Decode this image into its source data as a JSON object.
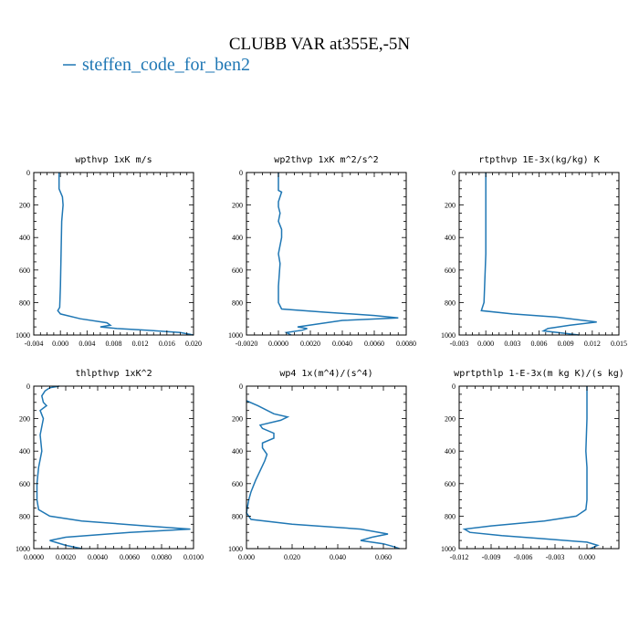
{
  "title": "CLUBB VAR at355E,-5N",
  "legend": {
    "label": "steffen_code_for_ben2",
    "color": "#1f77b4"
  },
  "chart_data": [
    {
      "type": "line",
      "title": "wpthvp  1xK m/s",
      "xlim": [
        -0.004,
        0.02
      ],
      "ylim": [
        1000,
        0
      ],
      "xticks": [
        "-0.004",
        "0.000",
        "0.004",
        "0.008",
        "0.012",
        "0.016",
        "0.020"
      ],
      "yticks": [
        "0",
        "200",
        "400",
        "600",
        "800",
        "1000"
      ],
      "series": [
        {
          "name": "steffen_code_for_ben2",
          "points": [
            [
              -0.0002,
              0
            ],
            [
              -0.0002,
              100
            ],
            [
              0.0003,
              150
            ],
            [
              0.0004,
              200
            ],
            [
              0.0002,
              300
            ],
            [
              0.0001,
              500
            ],
            [
              0.0,
              700
            ],
            [
              -0.0001,
              830
            ],
            [
              -0.0004,
              850
            ],
            [
              0.0,
              870
            ],
            [
              0.003,
              900
            ],
            [
              0.007,
              925
            ],
            [
              0.0075,
              940
            ],
            [
              0.006,
              950
            ],
            [
              0.0085,
              960
            ],
            [
              0.013,
              970
            ],
            [
              0.018,
              985
            ],
            [
              0.02,
              1000
            ]
          ]
        }
      ]
    },
    {
      "type": "line",
      "title": "wp2thvp  1xK m^2/s^2",
      "xlim": [
        -0.002,
        0.008
      ],
      "ylim": [
        1000,
        0
      ],
      "xticks": [
        "-0.0020",
        "0.0000",
        "0.0020",
        "0.0040",
        "0.0060",
        "0.0080"
      ],
      "yticks": [
        "0",
        "200",
        "400",
        "600",
        "800",
        "1000"
      ],
      "series": [
        {
          "name": "steffen_code_for_ben2",
          "points": [
            [
              0.0,
              0
            ],
            [
              0.0,
              110
            ],
            [
              0.0002,
              120
            ],
            [
              0.0,
              180
            ],
            [
              0.0,
              210
            ],
            [
              0.0001,
              250
            ],
            [
              0.0,
              300
            ],
            [
              0.0002,
              350
            ],
            [
              0.0002,
              400
            ],
            [
              0.0,
              500
            ],
            [
              0.0001,
              560
            ],
            [
              0.0,
              700
            ],
            [
              0.0,
              800
            ],
            [
              0.0002,
              840
            ],
            [
              0.003,
              860
            ],
            [
              0.006,
              880
            ],
            [
              0.0075,
              895
            ],
            [
              0.004,
              910
            ],
            [
              0.0012,
              950
            ],
            [
              0.0018,
              960
            ],
            [
              0.0015,
              970
            ],
            [
              0.0005,
              985
            ],
            [
              0.0008,
              1000
            ]
          ]
        }
      ]
    },
    {
      "type": "line",
      "title": "rtpthvp  1E-3x(kg/kg) K",
      "xlim": [
        -0.003,
        0.015
      ],
      "ylim": [
        1000,
        0
      ],
      "xticks": [
        "-0.003",
        "0.000",
        "0.003",
        "0.006",
        "0.009",
        "0.012",
        "0.015"
      ],
      "yticks": [
        "0",
        "200",
        "400",
        "600",
        "800",
        "1000"
      ],
      "series": [
        {
          "name": "steffen_code_for_ben2",
          "points": [
            [
              0.0,
              0
            ],
            [
              0.0,
              200
            ],
            [
              0.0,
              500
            ],
            [
              -0.0002,
              800
            ],
            [
              -0.0005,
              850
            ],
            [
              0.003,
              870
            ],
            [
              0.008,
              890
            ],
            [
              0.0125,
              920
            ],
            [
              0.0095,
              940
            ],
            [
              0.007,
              960
            ],
            [
              0.0065,
              975
            ],
            [
              0.009,
              990
            ],
            [
              0.0105,
              1000
            ]
          ]
        }
      ]
    },
    {
      "type": "line",
      "title": "thlpthvp  1xK^2",
      "xlim": [
        0.0,
        0.01
      ],
      "ylim": [
        1000,
        0
      ],
      "xticks": [
        "0.0000",
        "0.0020",
        "0.0040",
        "0.0060",
        "0.0080",
        "0.0100"
      ],
      "yticks": [
        "0",
        "200",
        "400",
        "600",
        "800",
        "1000"
      ],
      "series": [
        {
          "name": "steffen_code_for_ben2",
          "points": [
            [
              0.0016,
              0
            ],
            [
              0.001,
              10
            ],
            [
              0.0007,
              30
            ],
            [
              0.0005,
              60
            ],
            [
              0.0006,
              100
            ],
            [
              0.0008,
              120
            ],
            [
              0.0004,
              150
            ],
            [
              0.0006,
              200
            ],
            [
              0.0004,
              300
            ],
            [
              0.0005,
              400
            ],
            [
              0.0003,
              500
            ],
            [
              0.0002,
              600
            ],
            [
              0.0002,
              700
            ],
            [
              0.0003,
              760
            ],
            [
              0.001,
              800
            ],
            [
              0.003,
              830
            ],
            [
              0.007,
              860
            ],
            [
              0.0098,
              880
            ],
            [
              0.006,
              900
            ],
            [
              0.002,
              930
            ],
            [
              0.001,
              950
            ],
            [
              0.002,
              980
            ],
            [
              0.003,
              1000
            ]
          ]
        }
      ]
    },
    {
      "type": "line",
      "title": "wp4  1x(m^4)/(s^4)",
      "xlim": [
        0.0,
        0.07
      ],
      "ylim": [
        1000,
        0
      ],
      "xticks": [
        "0.000",
        "0.020",
        "0.040",
        "0.060"
      ],
      "yticks": [
        "0",
        "200",
        "400",
        "600",
        "800",
        "1000"
      ],
      "series": [
        {
          "name": "steffen_code_for_ben2",
          "points": [
            [
              0.0,
              90
            ],
            [
              0.005,
              120
            ],
            [
              0.012,
              170
            ],
            [
              0.018,
              190
            ],
            [
              0.015,
              210
            ],
            [
              0.006,
              240
            ],
            [
              0.007,
              260
            ],
            [
              0.012,
              290
            ],
            [
              0.012,
              320
            ],
            [
              0.007,
              350
            ],
            [
              0.007,
              380
            ],
            [
              0.009,
              420
            ],
            [
              0.008,
              460
            ],
            [
              0.006,
              520
            ],
            [
              0.004,
              580
            ],
            [
              0.002,
              650
            ],
            [
              0.001,
              700
            ],
            [
              0.0,
              780
            ],
            [
              0.002,
              820
            ],
            [
              0.02,
              850
            ],
            [
              0.05,
              880
            ],
            [
              0.062,
              910
            ],
            [
              0.055,
              930
            ],
            [
              0.05,
              950
            ],
            [
              0.06,
              970
            ],
            [
              0.065,
              990
            ],
            [
              0.067,
              1000
            ]
          ]
        }
      ]
    },
    {
      "type": "line",
      "title": "wprtpthlp  1-E-3x(m kg K)/(s kg)",
      "xlim": [
        -0.012,
        0.003
      ],
      "ylim": [
        1000,
        0
      ],
      "xticks": [
        "-0.012",
        "-0.009",
        "-0.006",
        "-0.003",
        "0.000"
      ],
      "yticks": [
        "0",
        "200",
        "400",
        "600",
        "800",
        "1000"
      ],
      "series": [
        {
          "name": "steffen_code_for_ben2",
          "points": [
            [
              0.0,
              0
            ],
            [
              0.0,
              200
            ],
            [
              -0.0001,
              400
            ],
            [
              0.0,
              500
            ],
            [
              0.0,
              600
            ],
            [
              0.0,
              700
            ],
            [
              -0.0001,
              760
            ],
            [
              -0.001,
              800
            ],
            [
              -0.004,
              830
            ],
            [
              -0.009,
              860
            ],
            [
              -0.0115,
              880
            ],
            [
              -0.011,
              900
            ],
            [
              -0.008,
              920
            ],
            [
              -0.004,
              940
            ],
            [
              0.0,
              960
            ],
            [
              0.001,
              980
            ],
            [
              0.0003,
              1000
            ]
          ]
        }
      ]
    }
  ]
}
